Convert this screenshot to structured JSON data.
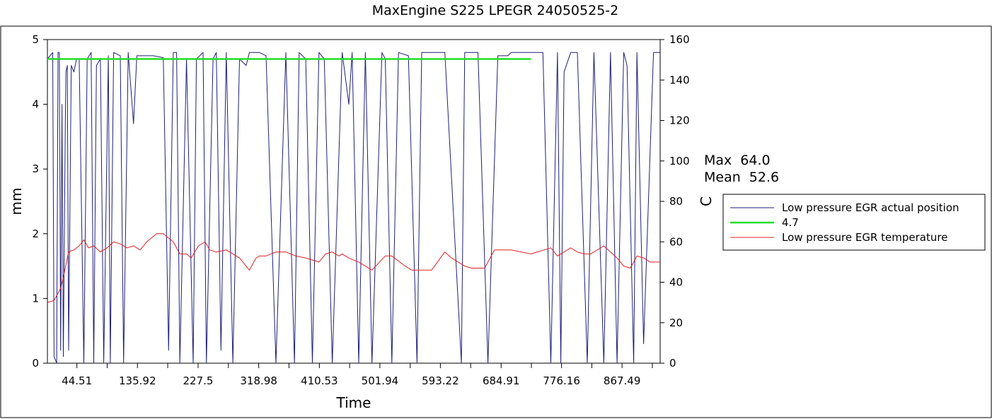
{
  "chart_data": {
    "type": "line",
    "title": "MaxEngine S225 LPEGR 24050525-2",
    "xlabel": "Time",
    "ylabel_left": "mm",
    "ylabel_right": "C",
    "x_range": [
      0,
      925
    ],
    "x_ticks": [
      "44.51",
      "135.92",
      "227.5",
      "318.98",
      "410.53",
      "501.94",
      "593.22",
      "684.91",
      "776.16",
      "867.49"
    ],
    "x_tick_values": [
      44.51,
      135.92,
      227.5,
      318.98,
      410.53,
      501.94,
      593.22,
      684.91,
      776.16,
      867.49
    ],
    "ylim_left": [
      0,
      5
    ],
    "y_ticks_left": [
      "0",
      "1",
      "2",
      "3",
      "4",
      "5"
    ],
    "ylim_right": [
      0,
      160
    ],
    "y_ticks_right": [
      "0",
      "20",
      "40",
      "60",
      "80",
      "100",
      "120",
      "140",
      "160"
    ],
    "grid": false,
    "stats": {
      "max_label": "Max",
      "max_value": "64.0",
      "mean_label": "Mean",
      "mean_value": "52.6"
    },
    "legend_position": "right",
    "series": [
      {
        "name": "Low pressure EGR actual position",
        "axis": "left",
        "color": "#1f1f7a",
        "x": [
          0,
          8,
          10,
          14,
          16,
          18,
          20,
          22,
          24,
          27,
          28,
          30,
          32,
          36,
          40,
          44,
          48,
          55,
          60,
          66,
          70,
          74,
          80,
          85,
          92,
          95,
          100,
          110,
          115,
          122,
          130,
          135,
          140,
          150,
          160,
          175,
          183,
          190,
          195,
          200,
          210,
          220,
          225,
          235,
          240,
          250,
          255,
          262,
          270,
          280,
          290,
          300,
          305,
          320,
          330,
          345,
          360,
          373,
          380,
          390,
          400,
          410,
          418,
          430,
          445,
          455,
          460,
          470,
          480,
          490,
          505,
          510,
          520,
          530,
          545,
          558,
          565,
          580,
          600,
          625,
          630,
          650,
          665,
          680,
          695,
          700,
          720,
          748,
          760,
          770,
          775,
          780,
          790,
          800,
          815,
          825,
          840,
          850,
          860,
          870,
          875,
          885,
          890,
          900,
          915,
          925
        ],
        "values": [
          4.7,
          4.8,
          0.1,
          0.0,
          4.8,
          4.8,
          0.2,
          4.0,
          0.1,
          3.7,
          4.5,
          4.6,
          0.2,
          4.6,
          4.5,
          4.7,
          4.7,
          0.0,
          4.7,
          4.8,
          0.0,
          4.6,
          4.7,
          0.0,
          4.75,
          0.0,
          4.8,
          4.75,
          0.0,
          4.8,
          3.7,
          4.75,
          4.75,
          4.75,
          4.75,
          4.72,
          0.2,
          4.8,
          4.8,
          0.0,
          4.7,
          0.0,
          4.7,
          4.8,
          0.0,
          4.7,
          4.8,
          0.2,
          4.8,
          0.0,
          4.7,
          4.6,
          4.8,
          4.8,
          4.75,
          0.0,
          4.8,
          0.0,
          4.8,
          4.7,
          0.0,
          4.8,
          4.7,
          0.0,
          4.8,
          4.0,
          4.8,
          0.0,
          4.8,
          0.0,
          4.8,
          4.7,
          0.0,
          4.8,
          4.75,
          0.0,
          4.8,
          4.8,
          4.8,
          0.0,
          4.8,
          4.8,
          0.0,
          4.75,
          4.75,
          4.8,
          4.8,
          4.8,
          0.0,
          4.8,
          0.0,
          4.5,
          4.8,
          4.8,
          0.0,
          4.8,
          0.0,
          4.8,
          0.0,
          4.8,
          4.6,
          0.0,
          4.8,
          0.3,
          4.8,
          4.8
        ]
      },
      {
        "name": "4.7",
        "axis": "left",
        "color": "#22dd22",
        "x": [
          0,
          730
        ],
        "values": [
          4.7,
          4.7
        ]
      },
      {
        "name": "Low pressure EGR temperature",
        "axis": "right",
        "color": "#e02020",
        "x": [
          0,
          10,
          20,
          25,
          32,
          40,
          48,
          55,
          62,
          70,
          80,
          90,
          100,
          110,
          120,
          130,
          140,
          150,
          165,
          175,
          190,
          200,
          210,
          217,
          228,
          238,
          245,
          255,
          270,
          290,
          305,
          315,
          320,
          330,
          345,
          360,
          375,
          390,
          410,
          420,
          430,
          440,
          445,
          455,
          470,
          490,
          510,
          520,
          540,
          550,
          560,
          570,
          580,
          600,
          610,
          630,
          640,
          660,
          675,
          700,
          730,
          750,
          760,
          770,
          790,
          800,
          810,
          820,
          840,
          850,
          860,
          870,
          880,
          890,
          900,
          910,
          925
        ],
        "values": [
          30,
          31,
          37,
          44,
          55,
          56,
          58,
          61,
          57,
          58,
          55,
          57,
          60,
          59,
          57,
          58,
          56,
          60,
          64,
          64,
          60,
          54,
          54,
          52,
          58,
          60,
          56,
          55,
          56,
          52,
          46,
          52,
          53,
          53,
          55,
          55,
          53,
          52,
          50,
          54,
          55,
          53,
          54,
          52,
          50,
          46,
          53,
          53,
          48,
          46,
          46,
          46,
          46,
          55,
          52,
          48,
          47,
          47,
          56,
          56,
          54,
          56,
          57,
          53,
          57,
          55,
          54,
          54,
          58,
          55,
          52,
          48,
          47,
          53,
          52,
          50,
          50
        ]
      }
    ]
  }
}
